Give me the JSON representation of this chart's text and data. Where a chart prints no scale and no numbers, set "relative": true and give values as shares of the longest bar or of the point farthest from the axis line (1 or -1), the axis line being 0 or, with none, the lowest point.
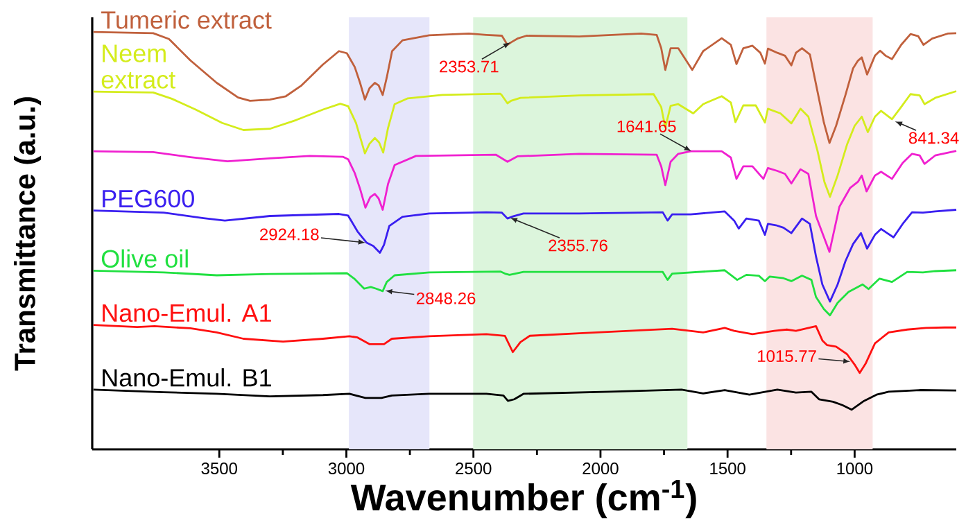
{
  "chart_data": {
    "type": "line",
    "relative": true,
    "xlabel": "Wavenumber (cm$^{-1}$)",
    "ylabel": "Transmittance (a.u.)",
    "xlim": [
      4000,
      600
    ],
    "xticks": [
      3500,
      3000,
      2500,
      2000,
      1500,
      1000
    ],
    "bands": [
      {
        "axis": "x",
        "from": 2990,
        "to": 2673,
        "color": "#e6e6fa"
      },
      {
        "axis": "x",
        "from": 2501,
        "to": 1658,
        "color": "#dcf5dc"
      },
      {
        "axis": "x",
        "from": 1347,
        "to": 929,
        "color": "#fbe3e3"
      }
    ],
    "annotations": [
      {
        "text": "2353.71",
        "x": 2353.71,
        "y": 0.975
      },
      {
        "text": "841.34",
        "x": 841.34,
        "y": 0.786
      },
      {
        "text": "1641.65",
        "x": 1641.65,
        "y": 0.714
      },
      {
        "text": "2924.18",
        "x": 2924.18,
        "y": 0.495
      },
      {
        "text": "2355.76",
        "x": 2355.76,
        "y": 0.555
      },
      {
        "text": "2848.26",
        "x": 2848.26,
        "y": 0.38
      },
      {
        "text": "1015.77",
        "x": 1015.77,
        "y": 0.21
      }
    ],
    "series": [
      {
        "name": "Tumeric extract",
        "color": "#c0603c",
        "x": [
          3995,
          3760,
          3698,
          3614,
          3510,
          3426,
          3379,
          3301,
          3238,
          3176,
          3092,
          3029,
          2998,
          2967,
          2946,
          2927,
          2909,
          2888,
          2873,
          2857,
          2841,
          2820,
          2779,
          2674,
          2518,
          2449,
          2388,
          2366,
          2352,
          2327,
          2291,
          2084,
          1840,
          1779,
          1761,
          1745,
          1724,
          1694,
          1639,
          1596,
          1523,
          1487,
          1465,
          1438,
          1402,
          1371,
          1353,
          1341,
          1304,
          1274,
          1249,
          1231,
          1207,
          1176,
          1146,
          1121,
          1099,
          1073,
          1036,
          1006,
          987,
          972,
          951,
          920,
          900,
          878,
          853,
          817,
          780,
          750,
          729,
          695,
          634,
          600
        ],
        "values": [
          1.0,
          0.997,
          0.983,
          0.932,
          0.878,
          0.843,
          0.835,
          0.838,
          0.846,
          0.872,
          0.922,
          0.954,
          0.949,
          0.916,
          0.878,
          0.838,
          0.865,
          0.878,
          0.872,
          0.849,
          0.891,
          0.954,
          0.98,
          0.992,
          0.996,
          0.993,
          0.991,
          0.969,
          0.975,
          0.984,
          0.991,
          0.989,
          0.996,
          0.993,
          0.961,
          0.909,
          0.961,
          0.961,
          0.909,
          0.954,
          0.985,
          0.969,
          0.923,
          0.961,
          0.967,
          0.95,
          0.924,
          0.96,
          0.95,
          0.943,
          0.92,
          0.95,
          0.961,
          0.946,
          0.857,
          0.783,
          0.734,
          0.775,
          0.849,
          0.913,
          0.931,
          0.939,
          0.898,
          0.943,
          0.955,
          0.943,
          0.935,
          0.969,
          0.995,
          0.99,
          0.969,
          0.984,
          0.996,
          0.997
        ]
      },
      {
        "name": "Neem extract",
        "color": "#d4ec1c",
        "x": [
          3995,
          3760,
          3687,
          3593,
          3489,
          3405,
          3301,
          3197,
          3092,
          3024,
          2993,
          2962,
          2927,
          2909,
          2888,
          2871,
          2855,
          2836,
          2810,
          2758,
          2622,
          2394,
          2388,
          2366,
          2352,
          2315,
          2084,
          1791,
          1761,
          1745,
          1724,
          1694,
          1635,
          1596,
          1523,
          1487,
          1469,
          1438,
          1389,
          1353,
          1341,
          1292,
          1249,
          1213,
          1182,
          1146,
          1119,
          1097,
          1067,
          1030,
          1000,
          972,
          948,
          920,
          896,
          853,
          817,
          780,
          744,
          725,
          683,
          600
        ],
        "values": [
          0.857,
          0.855,
          0.84,
          0.814,
          0.782,
          0.765,
          0.768,
          0.789,
          0.814,
          0.828,
          0.822,
          0.782,
          0.709,
          0.732,
          0.746,
          0.735,
          0.711,
          0.77,
          0.827,
          0.841,
          0.849,
          0.852,
          0.848,
          0.829,
          0.835,
          0.842,
          0.848,
          0.851,
          0.82,
          0.771,
          0.823,
          0.827,
          0.805,
          0.827,
          0.846,
          0.831,
          0.784,
          0.824,
          0.824,
          0.783,
          0.816,
          0.805,
          0.781,
          0.816,
          0.797,
          0.715,
          0.641,
          0.605,
          0.656,
          0.73,
          0.775,
          0.797,
          0.76,
          0.797,
          0.811,
          0.791,
          0.82,
          0.851,
          0.848,
          0.827,
          0.842,
          0.858
        ]
      },
      {
        "color": "#f020d0",
        "x": [
          3995,
          3760,
          3614,
          3468,
          3301,
          3144,
          3014,
          2993,
          2967,
          2946,
          2925,
          2906,
          2888,
          2873,
          2857,
          2836,
          2810,
          2726,
          2412,
          2366,
          2327,
          2084,
          1779,
          1761,
          1745,
          1724,
          1694,
          1645,
          1523,
          1487,
          1465,
          1438,
          1402,
          1359,
          1341,
          1304,
          1274,
          1249,
          1213,
          1182,
          1152,
          1099,
          1060,
          1018,
          987,
          972,
          953,
          920,
          896,
          853,
          811,
          774,
          744,
          725,
          683,
          600
        ],
        "values": [
          0.714,
          0.712,
          0.7,
          0.69,
          0.697,
          0.703,
          0.701,
          0.695,
          0.662,
          0.624,
          0.579,
          0.604,
          0.612,
          0.601,
          0.574,
          0.636,
          0.681,
          0.703,
          0.706,
          0.689,
          0.702,
          0.708,
          0.706,
          0.678,
          0.633,
          0.689,
          0.708,
          0.714,
          0.714,
          0.699,
          0.648,
          0.678,
          0.678,
          0.648,
          0.674,
          0.667,
          0.66,
          0.637,
          0.671,
          0.66,
          0.559,
          0.473,
          0.581,
          0.626,
          0.641,
          0.656,
          0.618,
          0.656,
          0.665,
          0.648,
          0.686,
          0.708,
          0.704,
          0.684,
          0.704,
          0.715
        ]
      },
      {
        "name": "PEG600",
        "color": "#3a1ff0",
        "x": [
          3995,
          3719,
          3562,
          3478,
          3301,
          3029,
          2993,
          2956,
          2920,
          2894,
          2868,
          2852,
          2831,
          2779,
          2674,
          2449,
          2388,
          2366,
          2345,
          2303,
          2084,
          1755,
          1736,
          1718,
          1645,
          1511,
          1474,
          1456,
          1426,
          1377,
          1353,
          1341,
          1310,
          1280,
          1249,
          1207,
          1176,
          1152,
          1127,
          1097,
          1067,
          1036,
          1006,
          975,
          951,
          920,
          896,
          872,
          847,
          811,
          774,
          731,
          683,
          600
        ],
        "values": [
          0.572,
          0.567,
          0.554,
          0.548,
          0.559,
          0.564,
          0.56,
          0.522,
          0.495,
          0.487,
          0.471,
          0.49,
          0.535,
          0.557,
          0.565,
          0.568,
          0.567,
          0.553,
          0.558,
          0.565,
          0.565,
          0.568,
          0.548,
          0.563,
          0.563,
          0.57,
          0.548,
          0.529,
          0.553,
          0.548,
          0.514,
          0.54,
          0.537,
          0.531,
          0.518,
          0.553,
          0.54,
          0.462,
          0.395,
          0.354,
          0.395,
          0.451,
          0.492,
          0.518,
          0.481,
          0.514,
          0.528,
          0.518,
          0.508,
          0.54,
          0.568,
          0.567,
          0.57,
          0.574
        ]
      },
      {
        "name": "Olive oil",
        "color": "#20e040",
        "x": [
          3995,
          3719,
          3510,
          3301,
          2998,
          2967,
          2930,
          2904,
          2883,
          2857,
          2841,
          2810,
          2674,
          2394,
          2376,
          2358,
          2303,
          1755,
          1736,
          1718,
          1511,
          1462,
          1426,
          1377,
          1353,
          1334,
          1280,
          1249,
          1207,
          1170,
          1152,
          1121,
          1097,
          1067,
          1024,
          969,
          945,
          902,
          853,
          793,
          731,
          683,
          600
        ],
        "values": [
          0.428,
          0.424,
          0.417,
          0.42,
          0.422,
          0.408,
          0.385,
          0.389,
          0.385,
          0.379,
          0.401,
          0.417,
          0.424,
          0.426,
          0.421,
          0.418,
          0.425,
          0.425,
          0.406,
          0.421,
          0.429,
          0.406,
          0.418,
          0.416,
          0.403,
          0.414,
          0.41,
          0.403,
          0.416,
          0.406,
          0.365,
          0.336,
          0.321,
          0.351,
          0.377,
          0.395,
          0.384,
          0.409,
          0.401,
          0.425,
          0.424,
          0.427,
          0.429
        ]
      },
      {
        "name": "Nano-Emul. A1",
        "color": "#ff1010",
        "x": [
          3995,
          3823,
          3755,
          3614,
          3510,
          3405,
          3249,
          3092,
          2988,
          2956,
          2909,
          2852,
          2821,
          2674,
          2449,
          2376,
          2345,
          2315,
          2278,
          2084,
          1718,
          1596,
          1511,
          1474,
          1402,
          1316,
          1267,
          1231,
          1152,
          1127,
          1109,
          1073,
          1030,
          1000,
          980,
          957,
          920,
          866,
          793,
          719,
          646,
          600
        ],
        "values": [
          0.298,
          0.293,
          0.295,
          0.29,
          0.28,
          0.265,
          0.258,
          0.265,
          0.271,
          0.268,
          0.252,
          0.252,
          0.265,
          0.271,
          0.276,
          0.272,
          0.233,
          0.257,
          0.272,
          0.278,
          0.289,
          0.28,
          0.291,
          0.284,
          0.276,
          0.284,
          0.287,
          0.284,
          0.295,
          0.261,
          0.25,
          0.246,
          0.228,
          0.203,
          0.183,
          0.205,
          0.254,
          0.28,
          0.287,
          0.291,
          0.292,
          0.292
        ]
      },
      {
        "name": "Nano-Emul. B1",
        "color": "#000000",
        "x": [
          3995,
          3719,
          3510,
          3301,
          3092,
          2988,
          2925,
          2862,
          2821,
          2674,
          2449,
          2382,
          2364,
          2339,
          2303,
          1962,
          1681,
          1596,
          1511,
          1414,
          1304,
          1231,
          1170,
          1140,
          1085,
          1048,
          1012,
          963,
          914,
          866,
          744,
          600
        ],
        "values": [
          0.143,
          0.137,
          0.133,
          0.127,
          0.13,
          0.133,
          0.123,
          0.123,
          0.129,
          0.133,
          0.133,
          0.129,
          0.116,
          0.12,
          0.133,
          0.138,
          0.143,
          0.134,
          0.142,
          0.131,
          0.143,
          0.136,
          0.138,
          0.12,
          0.114,
          0.106,
          0.095,
          0.116,
          0.131,
          0.138,
          0.142,
          0.141
        ]
      }
    ]
  }
}
